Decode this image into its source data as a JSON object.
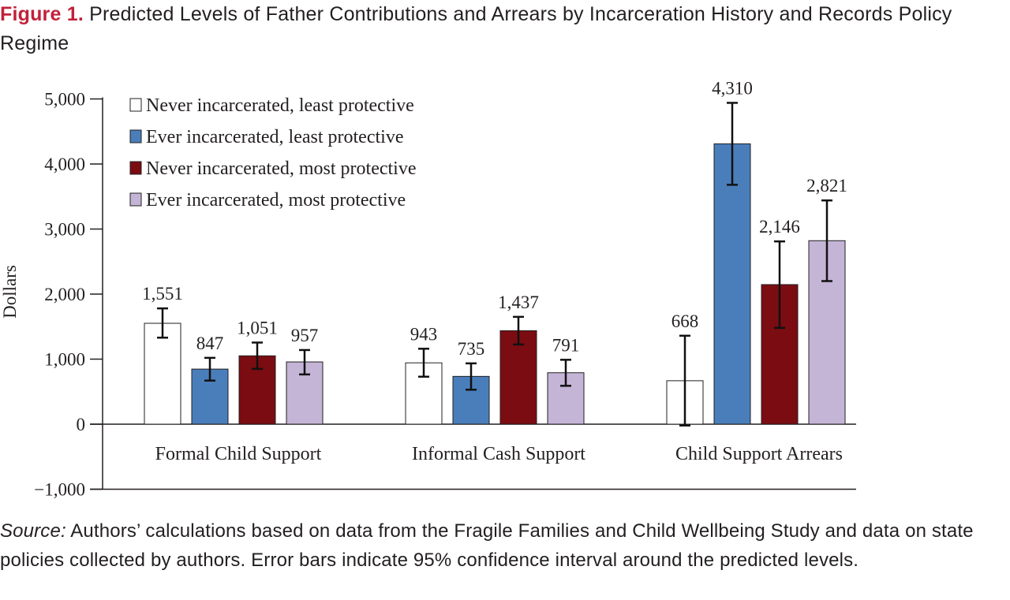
{
  "figure": {
    "label": "Figure 1.",
    "title": "Predicted Levels of Father Contributions and Arrears by Incarceration History and Records Policy Regime"
  },
  "source": {
    "label": "Source:",
    "text": "Authors’ calculations based on data from the Fragile Families and Child Wellbeing Study and data on state policies collected by authors. Error bars indicate 95% confidence interval around the pre­dicted levels."
  },
  "chart_data": {
    "type": "bar",
    "title": "Predicted Levels of Father Contributions and Arrears by Incarceration History and Records Policy Regime",
    "xlabel": "",
    "ylabel": "Dollars",
    "ylim": [
      -1000,
      5000
    ],
    "yticks": [
      -1000,
      0,
      1000,
      2000,
      3000,
      4000,
      5000
    ],
    "ytick_labels": [
      "−1,000",
      "0",
      "1,000",
      "2,000",
      "3,000",
      "4,000",
      "5,000"
    ],
    "grid": false,
    "legend_position": "top-left",
    "categories": [
      "Formal Child Support",
      "Informal Cash Support",
      "Child Support Arrears"
    ],
    "series": [
      {
        "name": "Never incarcerated, least protective",
        "color": "#ffffff",
        "values": [
          1551,
          943,
          668
        ],
        "labels": [
          "1,551",
          "943",
          "668"
        ],
        "ci_low": [
          1330,
          730,
          -20
        ],
        "ci_high": [
          1780,
          1160,
          1360
        ]
      },
      {
        "name": "Ever incarcerated, least protective",
        "color": "#4a7ebb",
        "values": [
          847,
          735,
          4310
        ],
        "labels": [
          "847",
          "735",
          "4,310"
        ],
        "ci_low": [
          670,
          530,
          3680
        ],
        "ci_high": [
          1020,
          935,
          4940
        ]
      },
      {
        "name": "Never incarcerated, most protective",
        "color": "#7b0c12",
        "values": [
          1051,
          1437,
          2146
        ],
        "labels": [
          "1,051",
          "1,437",
          "2,146"
        ],
        "ci_low": [
          850,
          1225,
          1480
        ],
        "ci_high": [
          1255,
          1650,
          2810
        ]
      },
      {
        "name": "Ever incarcerated, most protective",
        "color": "#c4b4d6",
        "values": [
          957,
          791,
          2821
        ],
        "labels": [
          "957",
          "791",
          "2,821"
        ],
        "ci_low": [
          765,
          590,
          2200
        ],
        "ci_high": [
          1140,
          990,
          3440
        ]
      }
    ]
  }
}
